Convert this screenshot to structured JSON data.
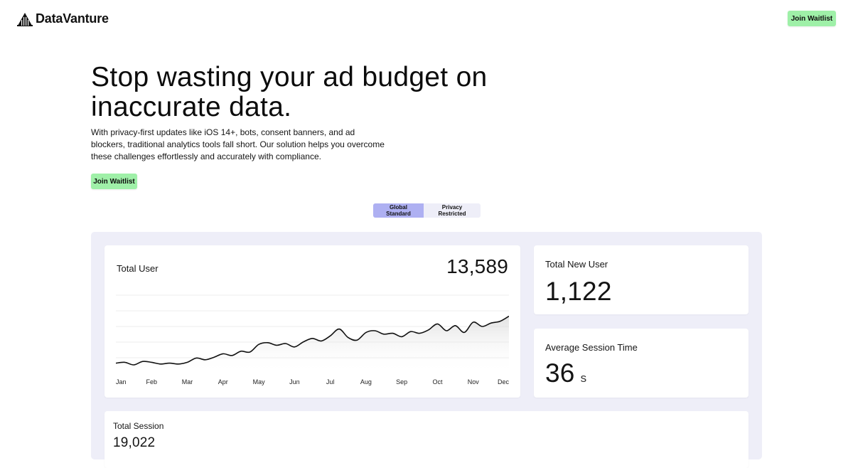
{
  "header": {
    "logo_icon": "building-skyline-icon",
    "brand": "DataVanture",
    "cta_label": "Join Waitlist"
  },
  "hero": {
    "title": "Stop wasting your ad budget on inaccurate data.",
    "subtitle": "With privacy-first updates like iOS 14+, bots, consent banners, and ad blockers, traditional analytics tools fall short. Our solution helps you overcome these challenges effortlessly and accurately with compliance.",
    "cta_label": "Join Waitlist"
  },
  "toggle": {
    "options": [
      "Global Standard",
      "Privacy Restricted"
    ],
    "active_index": 0
  },
  "colors": {
    "accent_green": "#9ff0a8",
    "toggle_active": "#aeb0f2",
    "dashboard_bg": "#eeeef8"
  },
  "dashboard": {
    "total_user": {
      "label": "Total User",
      "value": "13,589"
    },
    "total_new_user": {
      "label": "Total New User",
      "value": "1,122"
    },
    "avg_session": {
      "label": "Average Session Time",
      "value": "36",
      "unit": "s"
    },
    "total_session": {
      "label": "Total Session",
      "value": "19,022"
    }
  },
  "chart_data": {
    "type": "area",
    "categories": [
      "Jan",
      "Feb",
      "Mar",
      "Apr",
      "May",
      "Jun",
      "Jul",
      "Aug",
      "Sep",
      "Oct",
      "Nov",
      "Dec"
    ],
    "x": [
      0,
      0.25,
      0.5,
      0.75,
      1,
      1.25,
      1.5,
      1.75,
      2,
      2.25,
      2.5,
      2.75,
      3,
      3.25,
      3.5,
      3.75,
      4,
      4.25,
      4.5,
      4.75,
      5,
      5.25,
      5.5,
      5.75,
      6,
      6.25,
      6.5,
      6.75,
      7,
      7.25,
      7.5,
      7.75,
      8,
      8.25,
      8.5,
      8.75,
      9,
      9.25,
      9.5,
      9.75,
      10,
      10.25,
      10.5,
      10.75,
      11
    ],
    "values": [
      12,
      13,
      10,
      14,
      13,
      11,
      12,
      11,
      13,
      18,
      16,
      19,
      23,
      21,
      26,
      25,
      34,
      36,
      33,
      35,
      31,
      37,
      41,
      38,
      44,
      52,
      42,
      39,
      48,
      50,
      46,
      47,
      43,
      49,
      47,
      51,
      58,
      50,
      56,
      48,
      60,
      55,
      59,
      61,
      67
    ],
    "ylim": [
      0,
      100
    ],
    "grid": true,
    "title": "",
    "xlabel": "",
    "ylabel": ""
  }
}
